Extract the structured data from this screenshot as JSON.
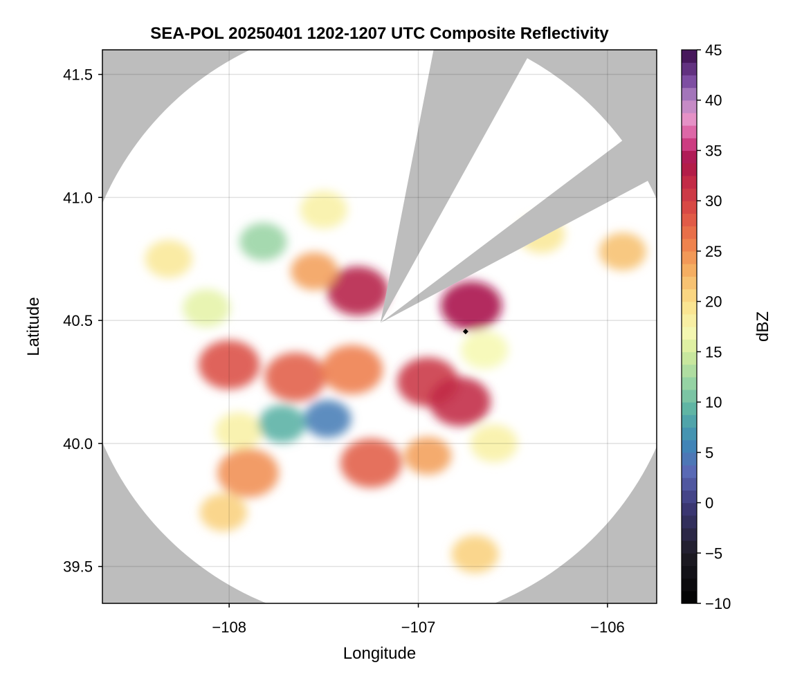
{
  "chart_data": {
    "type": "heatmap",
    "title": "SEA-POL 20250401 1202-1207 UTC Composite Reflectivity",
    "xlabel": "Longitude",
    "ylabel": "Latitude",
    "xlim": [
      -108.67,
      -105.74
    ],
    "ylim": [
      39.35,
      41.6
    ],
    "xticks": [
      -108,
      -107,
      -106
    ],
    "xtick_labels": [
      "−108",
      "−107",
      "−106"
    ],
    "yticks": [
      39.5,
      40.0,
      40.5,
      41.0,
      41.5
    ],
    "ytick_labels": [
      "39.5",
      "40.0",
      "40.5",
      "41.0",
      "41.5"
    ],
    "grid": true,
    "background_color": "#bdbdbd",
    "radar": {
      "center": [
        -107.2,
        40.49
      ],
      "range_radius_lon": 1.6,
      "blocked_sectors_bearing_deg": [
        [
          11,
          29
        ],
        [
          53,
          62
        ]
      ],
      "site_marker": [
        -106.75,
        40.455
      ]
    },
    "colorbar": {
      "label": "dBZ",
      "min": -10,
      "max": 45,
      "step": 1.25,
      "ticks": [
        45,
        40,
        35,
        30,
        25,
        20,
        15,
        10,
        5,
        0,
        -5,
        -10
      ],
      "tick_labels": [
        "45",
        "40",
        "35",
        "30",
        "25",
        "20",
        "15",
        "10",
        "5",
        "0",
        "−5",
        "−10"
      ],
      "colormap": "Spectral reversed",
      "colors": [
        {
          "v": -10,
          "c": "#000000"
        },
        {
          "v": -5,
          "c": "#1f1c26"
        },
        {
          "v": 0,
          "c": "#3e3a7c"
        },
        {
          "v": 3,
          "c": "#5a68b5"
        },
        {
          "v": 6,
          "c": "#3d88b7"
        },
        {
          "v": 9,
          "c": "#58b0a4"
        },
        {
          "v": 12,
          "c": "#98d4a4"
        },
        {
          "v": 15,
          "c": "#d4ec9c"
        },
        {
          "v": 17,
          "c": "#f6f8b2"
        },
        {
          "v": 20,
          "c": "#fbe08a"
        },
        {
          "v": 23,
          "c": "#f5b063"
        },
        {
          "v": 26,
          "c": "#ee7d4b"
        },
        {
          "v": 29,
          "c": "#db4d45"
        },
        {
          "v": 32,
          "c": "#c22a46"
        },
        {
          "v": 34,
          "c": "#a8124a"
        },
        {
          "v": 36,
          "c": "#d4468e"
        },
        {
          "v": 38,
          "c": "#e892c6"
        },
        {
          "v": 40,
          "c": "#b688c6"
        },
        {
          "v": 42,
          "c": "#7a4aa0"
        },
        {
          "v": 45,
          "c": "#3a0b4a"
        }
      ]
    },
    "echo_cells": [
      {
        "lon": -108.0,
        "lat": 40.32,
        "dbz": 29
      },
      {
        "lon": -107.65,
        "lat": 40.27,
        "dbz": 28
      },
      {
        "lon": -107.35,
        "lat": 40.3,
        "dbz": 26
      },
      {
        "lon": -106.95,
        "lat": 40.25,
        "dbz": 31
      },
      {
        "lon": -106.78,
        "lat": 40.17,
        "dbz": 32
      },
      {
        "lon": -106.72,
        "lat": 40.56,
        "dbz": 34
      },
      {
        "lon": -107.32,
        "lat": 40.62,
        "dbz": 33
      },
      {
        "lon": -107.55,
        "lat": 40.7,
        "dbz": 24
      },
      {
        "lon": -107.25,
        "lat": 39.92,
        "dbz": 28
      },
      {
        "lon": -106.95,
        "lat": 39.95,
        "dbz": 24
      },
      {
        "lon": -107.82,
        "lat": 40.82,
        "dbz": 12
      },
      {
        "lon": -107.5,
        "lat": 40.95,
        "dbz": 18
      },
      {
        "lon": -108.32,
        "lat": 40.75,
        "dbz": 19
      },
      {
        "lon": -108.12,
        "lat": 40.55,
        "dbz": 16
      },
      {
        "lon": -107.95,
        "lat": 40.05,
        "dbz": 18
      },
      {
        "lon": -107.9,
        "lat": 39.88,
        "dbz": 25
      },
      {
        "lon": -106.6,
        "lat": 40.0,
        "dbz": 18
      },
      {
        "lon": -106.65,
        "lat": 40.38,
        "dbz": 17
      },
      {
        "lon": -106.35,
        "lat": 40.85,
        "dbz": 19
      },
      {
        "lon": -105.92,
        "lat": 40.78,
        "dbz": 22
      },
      {
        "lon": -106.7,
        "lat": 39.55,
        "dbz": 21
      },
      {
        "lon": -108.03,
        "lat": 39.72,
        "dbz": 21
      },
      {
        "lon": -107.48,
        "lat": 40.1,
        "dbz": 5
      },
      {
        "lon": -107.72,
        "lat": 40.08,
        "dbz": 9
      }
    ]
  }
}
